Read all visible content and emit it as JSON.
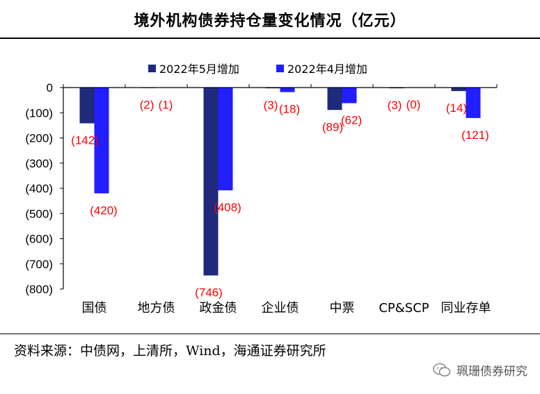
{
  "header": {
    "title": "境外机构债券持仓量变化情况（亿元）"
  },
  "footer": {
    "source": "资料来源：中债网，上清所，Wind，海通证券研究所",
    "watermark": "珮珊债券研究"
  },
  "colors": {
    "may": "#1f2a7a",
    "april": "#1f1fff",
    "label": "#ff0000",
    "axis": "#000000"
  },
  "chart_data": {
    "type": "bar",
    "title": "境外机构债券持仓量变化情况（亿元）",
    "categories": [
      "国债",
      "地方债",
      "政金债",
      "企业债",
      "中票",
      "CP&SCP",
      "同业存单"
    ],
    "series": [
      {
        "name": "2022年5月增加",
        "values": [
          -142,
          -2,
          -746,
          -3,
          -89,
          -3,
          -14
        ],
        "labels": [
          "(142)",
          "(2)",
          "(746)",
          "(3)",
          "(89)",
          "(3)",
          "(14)"
        ]
      },
      {
        "name": "2022年4月增加",
        "values": [
          -420,
          -1,
          -408,
          -18,
          -62,
          0,
          -121
        ],
        "labels": [
          "(420)",
          "(1)",
          "(408)",
          "(18)",
          "(62)",
          "(0)",
          "(121)"
        ]
      }
    ],
    "ylim": [
      -800,
      0
    ],
    "yticks": [
      0,
      -100,
      -200,
      -300,
      -400,
      -500,
      -600,
      -700,
      -800
    ],
    "ytick_labels": [
      "0",
      "(100)",
      "(200)",
      "(300)",
      "(400)",
      "(500)",
      "(600)",
      "(700)",
      "(800)"
    ],
    "legend_position": "top"
  }
}
